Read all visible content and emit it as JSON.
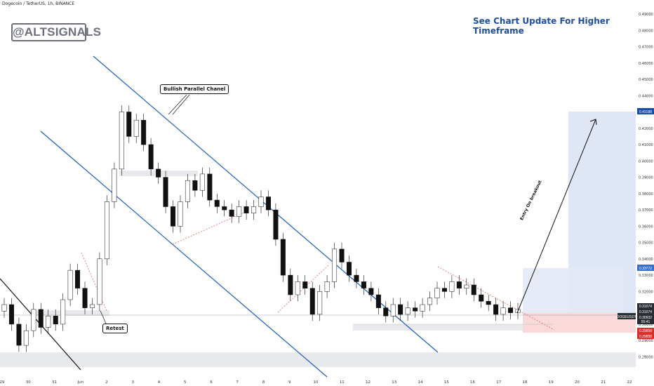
{
  "ticker": "Dogecoin / TetherUS, 1h, BINANCE",
  "brand": "@ALTSIGNALS",
  "headline": "See Chart Update For Higher Timeframe",
  "annotations": {
    "channel": "Bullish Parallel Chanel",
    "retest": "Retest",
    "entry": "Entry On breakout"
  },
  "chart_data": {
    "type": "candlestick",
    "ylim": [
      0.275,
      0.49
    ],
    "y_ticks": [
      "0.28000",
      "0.29000",
      "0.30000",
      "0.31000",
      "0.32000",
      "0.33000",
      "0.34000",
      "0.35000",
      "0.36000",
      "0.37000",
      "0.38000",
      "0.39000",
      "0.40000",
      "0.41000",
      "0.42000",
      "0.43000",
      "0.44000",
      "0.45000",
      "0.46000",
      "0.47000",
      "0.48000",
      "0.49000"
    ],
    "x_ticks": [
      "29",
      "30",
      "31",
      "Jun",
      "2",
      "3",
      "4",
      "5",
      "6",
      "7",
      "8",
      "9",
      "10",
      "11",
      "12",
      "13",
      "14",
      "15",
      "16",
      "17",
      "18",
      "19",
      "20",
      "21",
      "22"
    ],
    "price_labels": {
      "target": "0.43188",
      "resistance": "0.33772",
      "p1": "0.31074",
      "p2": "0.31074",
      "symbol": "DOGEUSDT",
      "current": "0.30932",
      "timer": "55:41",
      "stop1": "0.29858",
      "stop2": "0.29858"
    },
    "levels": {
      "target": 0.43188,
      "entry_top": 0.33772,
      "entry": 0.31074,
      "stop": 0.29858
    },
    "candles": [
      [
        0.308,
        0.312
      ],
      [
        0.312,
        0.3
      ],
      [
        0.3,
        0.287
      ],
      [
        0.287,
        0.296
      ],
      [
        0.296,
        0.309
      ],
      [
        0.309,
        0.298
      ],
      [
        0.298,
        0.305
      ],
      [
        0.305,
        0.3
      ],
      [
        0.3,
        0.315
      ],
      [
        0.315,
        0.333
      ],
      [
        0.333,
        0.322
      ],
      [
        0.322,
        0.31
      ],
      [
        0.31,
        0.312
      ],
      [
        0.312,
        0.34
      ],
      [
        0.34,
        0.375
      ],
      [
        0.375,
        0.395
      ],
      [
        0.395,
        0.43
      ],
      [
        0.43,
        0.415
      ],
      [
        0.415,
        0.425
      ],
      [
        0.425,
        0.41
      ],
      [
        0.41,
        0.395
      ],
      [
        0.395,
        0.39
      ],
      [
        0.39,
        0.372
      ],
      [
        0.372,
        0.36
      ],
      [
        0.36,
        0.375
      ],
      [
        0.375,
        0.388
      ],
      [
        0.388,
        0.382
      ],
      [
        0.382,
        0.392
      ],
      [
        0.392,
        0.376
      ],
      [
        0.376,
        0.372
      ],
      [
        0.372,
        0.37
      ],
      [
        0.37,
        0.366
      ],
      [
        0.366,
        0.372
      ],
      [
        0.372,
        0.368
      ],
      [
        0.368,
        0.372
      ],
      [
        0.372,
        0.378
      ],
      [
        0.378,
        0.37
      ],
      [
        0.37,
        0.352
      ],
      [
        0.352,
        0.33
      ],
      [
        0.33,
        0.318
      ],
      [
        0.318,
        0.326
      ],
      [
        0.326,
        0.322
      ],
      [
        0.322,
        0.306
      ],
      [
        0.306,
        0.32
      ],
      [
        0.32,
        0.326
      ],
      [
        0.326,
        0.346
      ],
      [
        0.346,
        0.338
      ],
      [
        0.338,
        0.33
      ],
      [
        0.33,
        0.326
      ],
      [
        0.326,
        0.322
      ],
      [
        0.322,
        0.318
      ],
      [
        0.318,
        0.31
      ],
      [
        0.31,
        0.305
      ],
      [
        0.305,
        0.312
      ],
      [
        0.312,
        0.306
      ],
      [
        0.306,
        0.31
      ],
      [
        0.31,
        0.308
      ],
      [
        0.308,
        0.312
      ],
      [
        0.312,
        0.316
      ],
      [
        0.316,
        0.322
      ],
      [
        0.322,
        0.32
      ],
      [
        0.32,
        0.326
      ],
      [
        0.326,
        0.322
      ],
      [
        0.322,
        0.324
      ],
      [
        0.324,
        0.318
      ],
      [
        0.318,
        0.314
      ],
      [
        0.314,
        0.312
      ],
      [
        0.312,
        0.306
      ],
      [
        0.306,
        0.31
      ],
      [
        0.31,
        0.307
      ],
      [
        0.307,
        0.309
      ]
    ]
  },
  "colors": {
    "bull": "#ffffff",
    "bear": "#111111",
    "channel": "#1a5fbf",
    "target_zone": "#dfe6f5",
    "stop_zone": "#f9d9d9",
    "stop_label": "#d9302c",
    "headline": "#1f4e9c",
    "brand": "#6d7079",
    "resistance": "#e57373"
  }
}
